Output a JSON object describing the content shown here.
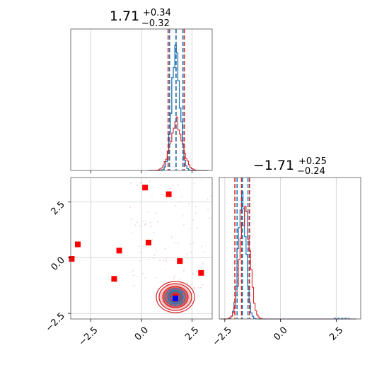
{
  "chart_data": {
    "type": "corner",
    "colors": {
      "blue": "#1f77b4",
      "red": "#d62728",
      "marker_red": "#ff0000",
      "marker_blue": "#0000ff",
      "grid": "#cccccc"
    },
    "param1": {
      "title": {
        "value": "1.71",
        "plus": "+0.34",
        "minus": "−0.32"
      },
      "median": 1.71,
      "quantiles": [
        1.39,
        2.05
      ],
      "red_lines": [
        1.32,
        1.71,
        2.12
      ],
      "xlim": [
        -3.5,
        3.5
      ],
      "ticks": [
        -2.5,
        0.0,
        2.5
      ],
      "tick_labels": [
        "−2.5",
        "0.0",
        "2.5"
      ]
    },
    "param2": {
      "title": {
        "value": "−1.71",
        "plus": "+0.25",
        "minus": "−0.24"
      },
      "median": -1.71,
      "quantiles": [
        -1.95,
        -1.46
      ],
      "red_lines": [
        -2.05,
        -1.75,
        -1.39
      ],
      "xlim": [
        -2.75,
        3.6
      ],
      "ticks": [
        -2.5,
        0.0,
        2.5
      ],
      "tick_labels": [
        "−2.5",
        "0.0",
        "2.5"
      ]
    },
    "scatter_lim": {
      "x": [
        -3.5,
        3.5
      ],
      "y": [
        -2.75,
        3.6
      ]
    },
    "scatter_red_squares": [
      {
        "x": 0.18,
        "y": 3.15
      },
      {
        "x": 1.35,
        "y": 2.85
      },
      {
        "x": -3.15,
        "y": 0.6
      },
      {
        "x": -1.1,
        "y": 0.32
      },
      {
        "x": 0.35,
        "y": 0.68
      },
      {
        "x": -3.45,
        "y": -0.05
      },
      {
        "x": 1.9,
        "y": -0.15
      },
      {
        "x": 2.95,
        "y": -0.68
      },
      {
        "x": -1.35,
        "y": -0.95
      }
    ],
    "scatter_blue_square": {
      "x": 1.68,
      "y": -1.83
    },
    "scatter_red_small_square": {
      "x": 1.68,
      "y": -1.74
    }
  }
}
